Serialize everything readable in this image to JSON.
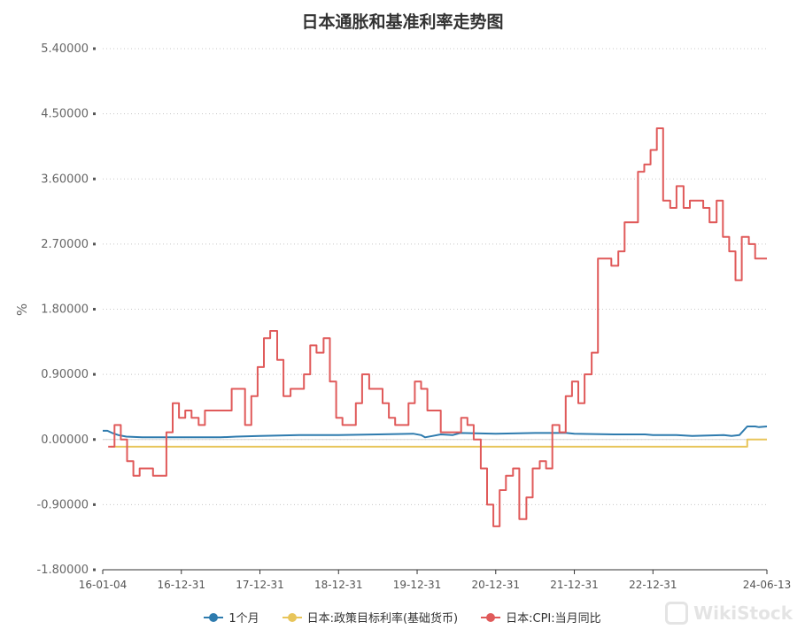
{
  "chart_data": {
    "type": "line",
    "title": "日本通胀和基准利率走势图",
    "ylabel": "%",
    "xlabel": "",
    "ylim": [
      -1.8,
      5.4
    ],
    "yticks": [
      "5.40000",
      "4.50000",
      "3.60000",
      "2.70000",
      "1.80000",
      "0.90000",
      "0.00000",
      "-0.90000",
      "-1.80000"
    ],
    "ytick_values": [
      5.4,
      4.5,
      3.6,
      2.7,
      1.8,
      0.9,
      0.0,
      -0.9,
      -1.8
    ],
    "xticks": [
      "16-01-04",
      "16-12-31",
      "17-12-31",
      "18-12-31",
      "19-12-31",
      "20-12-31",
      "21-12-31",
      "22-12-31",
      "24-06-13"
    ],
    "xtick_years": [
      2016.0,
      2017.0,
      2018.0,
      2019.0,
      2020.0,
      2021.0,
      2022.0,
      2023.0,
      2024.45
    ],
    "x_range": [
      2016.0,
      2024.45
    ],
    "grid": "horizontal dotted",
    "legend_position": "bottom",
    "series": [
      {
        "name": "1个月",
        "color": "#2e7bae",
        "step": false,
        "points": [
          [
            2016.0,
            0.12
          ],
          [
            2016.06,
            0.12
          ],
          [
            2016.12,
            0.09
          ],
          [
            2016.2,
            0.06
          ],
          [
            2016.3,
            0.04
          ],
          [
            2016.5,
            0.03
          ],
          [
            2017.0,
            0.03
          ],
          [
            2017.5,
            0.03
          ],
          [
            2017.7,
            0.04
          ],
          [
            2018.0,
            0.05
          ],
          [
            2018.5,
            0.06
          ],
          [
            2019.0,
            0.06
          ],
          [
            2019.5,
            0.07
          ],
          [
            2019.95,
            0.08
          ],
          [
            2020.05,
            0.06
          ],
          [
            2020.1,
            0.03
          ],
          [
            2020.2,
            0.05
          ],
          [
            2020.3,
            0.07
          ],
          [
            2020.45,
            0.06
          ],
          [
            2020.55,
            0.09
          ],
          [
            2021.0,
            0.08
          ],
          [
            2021.5,
            0.09
          ],
          [
            2021.9,
            0.09
          ],
          [
            2022.0,
            0.08
          ],
          [
            2022.5,
            0.07
          ],
          [
            2022.9,
            0.07
          ],
          [
            2023.0,
            0.06
          ],
          [
            2023.3,
            0.06
          ],
          [
            2023.5,
            0.05
          ],
          [
            2023.9,
            0.06
          ],
          [
            2024.0,
            0.05
          ],
          [
            2024.1,
            0.06
          ],
          [
            2024.2,
            0.18
          ],
          [
            2024.3,
            0.18
          ],
          [
            2024.35,
            0.17
          ],
          [
            2024.45,
            0.18
          ]
        ]
      },
      {
        "name": "日本:政策目标利率(基础货币)",
        "color": "#e8c55a",
        "step": true,
        "points": [
          [
            2016.1,
            -0.1
          ],
          [
            2024.2,
            -0.1
          ],
          [
            2024.2,
            0.0
          ],
          [
            2024.45,
            0.0
          ]
        ]
      },
      {
        "name": "日本:CPI:当月同比",
        "color": "#e05a5a",
        "step": true,
        "points": [
          [
            2016.07,
            -0.1
          ],
          [
            2016.15,
            0.2
          ],
          [
            2016.23,
            0.0
          ],
          [
            2016.31,
            -0.3
          ],
          [
            2016.39,
            -0.5
          ],
          [
            2016.47,
            -0.4
          ],
          [
            2016.64,
            -0.5
          ],
          [
            2016.81,
            0.1
          ],
          [
            2016.89,
            0.5
          ],
          [
            2016.97,
            0.3
          ],
          [
            2017.05,
            0.4
          ],
          [
            2017.13,
            0.3
          ],
          [
            2017.22,
            0.2
          ],
          [
            2017.3,
            0.4
          ],
          [
            2017.64,
            0.7
          ],
          [
            2017.81,
            0.2
          ],
          [
            2017.89,
            0.6
          ],
          [
            2017.97,
            1.0
          ],
          [
            2018.05,
            1.4
          ],
          [
            2018.13,
            1.5
          ],
          [
            2018.22,
            1.1
          ],
          [
            2018.3,
            0.6
          ],
          [
            2018.39,
            0.7
          ],
          [
            2018.56,
            0.9
          ],
          [
            2018.64,
            1.3
          ],
          [
            2018.72,
            1.2
          ],
          [
            2018.81,
            1.4
          ],
          [
            2018.89,
            0.8
          ],
          [
            2018.97,
            0.3
          ],
          [
            2019.05,
            0.2
          ],
          [
            2019.22,
            0.5
          ],
          [
            2019.3,
            0.9
          ],
          [
            2019.39,
            0.7
          ],
          [
            2019.56,
            0.5
          ],
          [
            2019.64,
            0.3
          ],
          [
            2019.72,
            0.2
          ],
          [
            2019.89,
            0.5
          ],
          [
            2019.97,
            0.8
          ],
          [
            2020.05,
            0.7
          ],
          [
            2020.13,
            0.4
          ],
          [
            2020.3,
            0.1
          ],
          [
            2020.56,
            0.3
          ],
          [
            2020.64,
            0.2
          ],
          [
            2020.72,
            0.0
          ],
          [
            2020.81,
            -0.4
          ],
          [
            2020.89,
            -0.9
          ],
          [
            2020.97,
            -1.2
          ],
          [
            2021.05,
            -0.7
          ],
          [
            2021.13,
            -0.5
          ],
          [
            2021.22,
            -0.4
          ],
          [
            2021.3,
            -1.1
          ],
          [
            2021.39,
            -0.8
          ],
          [
            2021.47,
            -0.4
          ],
          [
            2021.56,
            -0.3
          ],
          [
            2021.64,
            -0.4
          ],
          [
            2021.72,
            0.2
          ],
          [
            2021.81,
            0.1
          ],
          [
            2021.89,
            0.6
          ],
          [
            2021.97,
            0.8
          ],
          [
            2022.05,
            0.5
          ],
          [
            2022.13,
            0.9
          ],
          [
            2022.22,
            1.2
          ],
          [
            2022.3,
            2.5
          ],
          [
            2022.47,
            2.4
          ],
          [
            2022.56,
            2.6
          ],
          [
            2022.64,
            3.0
          ],
          [
            2022.81,
            3.7
          ],
          [
            2022.89,
            3.8
          ],
          [
            2022.97,
            4.0
          ],
          [
            2023.05,
            4.3
          ],
          [
            2023.13,
            3.3
          ],
          [
            2023.22,
            3.2
          ],
          [
            2023.3,
            3.5
          ],
          [
            2023.39,
            3.2
          ],
          [
            2023.47,
            3.3
          ],
          [
            2023.64,
            3.2
          ],
          [
            2023.72,
            3.0
          ],
          [
            2023.81,
            3.3
          ],
          [
            2023.89,
            2.8
          ],
          [
            2023.97,
            2.6
          ],
          [
            2024.05,
            2.2
          ],
          [
            2024.13,
            2.8
          ],
          [
            2024.22,
            2.7
          ],
          [
            2024.3,
            2.5
          ],
          [
            2024.45,
            2.5
          ]
        ]
      }
    ]
  },
  "legend": {
    "items": [
      {
        "label": "1个月",
        "color": "#2e7bae"
      },
      {
        "label": "日本:政策目标利率(基础货币)",
        "color": "#e8c55a"
      },
      {
        "label": "日本:CPI:当月同比",
        "color": "#e05a5a"
      }
    ]
  },
  "watermark": {
    "text": "WikiStock"
  }
}
